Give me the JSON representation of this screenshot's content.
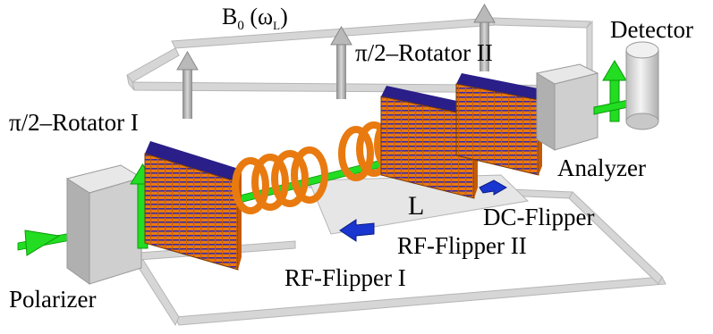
{
  "labels": {
    "field": "B",
    "field_sub": "0",
    "field_open": " (ω",
    "field_sub2": "L",
    "field_close": ")",
    "rotator_1": "π/2–Rotator I",
    "rotator_2": "π/2–Rotator II",
    "detector": "Detector",
    "analyzer": "Analyzer",
    "polarizer": "Polarizer",
    "length": "L",
    "dc_flipper": "DC-Flipper",
    "rf_flipper_2": "RF-Flipper II",
    "rf_flipper_1": "RF-Flipper I"
  },
  "colors": {
    "frame": "#d6d6d6",
    "box": "#c8c8c8",
    "beam": "#22dd22",
    "coil": "#e87a10",
    "rotator_face": "#e87a10",
    "rotator_line": "#3a2aa8",
    "flipper_arrow": "#1a36d0",
    "field_arrow": "#a0a0a0"
  }
}
